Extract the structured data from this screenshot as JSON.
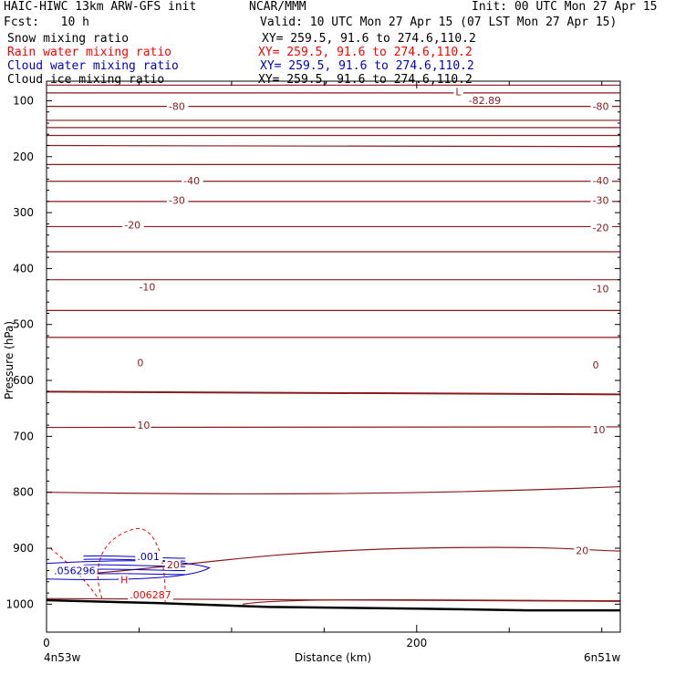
{
  "header": {
    "model": "HAIC-HIWC 13km ARW-GFS init",
    "org": "NCAR/MMM",
    "init": "Init: 00 UTC Mon 27 Apr 15",
    "fcst": "Fcst:   10 h",
    "valid": "Valid: 10 UTC Mon 27 Apr 15 (07 LST Mon 27 Apr 15)"
  },
  "legend": [
    {
      "label": "Snow mixing ratio",
      "xy": "XY= 259.5, 91.6 to 274.6,110.2",
      "color": "#000000"
    },
    {
      "label": "Rain water mixing ratio",
      "xy": "XY= 259.5, 91.6 to 274.6,110.2",
      "color": "#ff0000"
    },
    {
      "label": "Cloud water mixing ratio",
      "xy": "XY= 259.5, 91.6 to 274.6,110.2",
      "color": "#0000cc"
    },
    {
      "label": "Cloud ice mixing ratio",
      "xy": "XY= 259.5, 91.6 to 274.6,110.2",
      "color": "#000000"
    }
  ],
  "colors": {
    "temperature_contour": "#8b1a1a",
    "rain": "#ff0000",
    "cloud_water": "#0000cc",
    "terrain": "#000000"
  },
  "chart_data": {
    "type": "contour-cross-section",
    "xlabel": "Distance (km)",
    "ylabel": "Pressure (hPa)",
    "xlim": [
      0,
      310
    ],
    "ylim": [
      1050,
      65
    ],
    "x_ticks": [
      0,
      200
    ],
    "x_tick_labels": [
      "0",
      "200"
    ],
    "y_ticks": [
      100,
      200,
      300,
      400,
      500,
      600,
      700,
      800,
      900,
      1000
    ],
    "y_tick_labels": [
      "100",
      "200",
      "300",
      "400",
      "500",
      "600",
      "700",
      "800",
      "900",
      "1000"
    ],
    "endpoints": {
      "left": "4n53w",
      "right": "6n51w"
    },
    "temperature_levels": [
      {
        "p_left": 72,
        "p_right": 72
      },
      {
        "p_left": 86,
        "p_right": 86
      },
      {
        "p_left": 110,
        "p_right": 110
      },
      {
        "p_left": 135,
        "p_right": 135
      },
      {
        "p_left": 148,
        "p_right": 148
      },
      {
        "p_left": 162,
        "p_right": 162
      },
      {
        "p_left": 180,
        "p_right": 182
      },
      {
        "p_left": 214,
        "p_right": 214
      },
      {
        "p_left": 244,
        "p_right": 244
      },
      {
        "p_left": 280,
        "p_right": 280
      },
      {
        "p_left": 325,
        "p_right": 325
      },
      {
        "p_left": 370,
        "p_right": 370
      },
      {
        "p_left": 420,
        "p_right": 420
      },
      {
        "p_left": 475,
        "p_right": 475
      },
      {
        "p_left": 523,
        "p_right": 523
      },
      {
        "p_left": 620,
        "p_right": 625
      },
      {
        "p_left": 684,
        "p_right": 683
      },
      {
        "p_left": 800,
        "p_right": 790
      },
      {
        "p_left": 990,
        "p_right": 995
      }
    ],
    "contour_labels": [
      {
        "text": "-82.89",
        "x": 228,
        "p": 99
      },
      {
        "text": "L",
        "x": 221,
        "p": 84
      },
      {
        "text": "-80",
        "x": 66,
        "p": 110
      },
      {
        "text": "-80",
        "x": 295,
        "p": 110
      },
      {
        "text": "-40",
        "x": 74,
        "p": 243
      },
      {
        "text": "-40",
        "x": 295,
        "p": 243
      },
      {
        "text": "-30",
        "x": 66,
        "p": 278
      },
      {
        "text": "-30",
        "x": 295,
        "p": 278
      },
      {
        "text": "-20",
        "x": 42,
        "p": 322
      },
      {
        "text": "-20",
        "x": 295,
        "p": 327
      },
      {
        "text": "-10",
        "x": 50,
        "p": 433
      },
      {
        "text": "-10",
        "x": 295,
        "p": 436
      },
      {
        "text": "0",
        "x": 49,
        "p": 568
      },
      {
        "text": "0",
        "x": 295,
        "p": 572
      },
      {
        "text": "10",
        "x": 49,
        "p": 680
      },
      {
        "text": "10",
        "x": 295,
        "p": 688
      },
      {
        "text": "20",
        "x": 286,
        "p": 904
      },
      {
        "text": "20",
        "x": 65,
        "p": 929
      },
      {
        "text": ".001",
        "x": 49,
        "p": 915
      },
      {
        "text": ".056296",
        "x": 4,
        "p": 940
      },
      {
        "text": "H",
        "x": 40,
        "p": 956
      },
      {
        "text": ".006287",
        "x": 45,
        "p": 983
      }
    ],
    "terrain": [
      [
        0,
        993
      ],
      [
        60,
        998
      ],
      [
        120,
        1005
      ],
      [
        200,
        1008
      ],
      [
        260,
        1011
      ],
      [
        310,
        1011
      ]
    ]
  }
}
